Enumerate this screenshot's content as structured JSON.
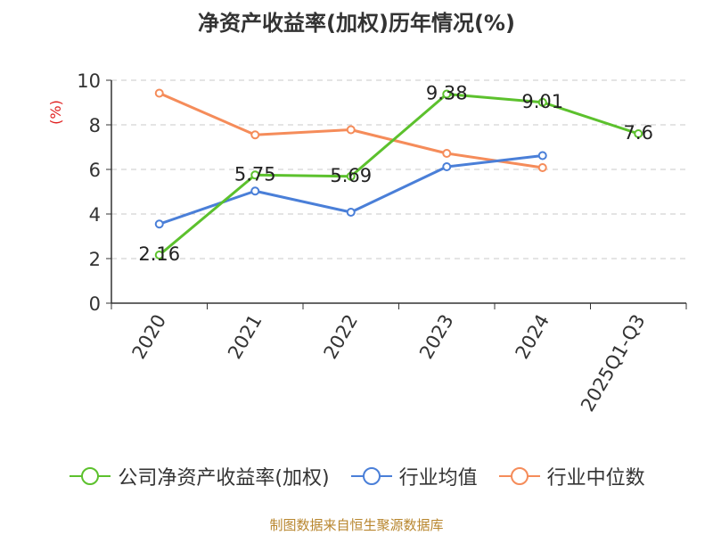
{
  "chart_data": {
    "type": "line",
    "title": "净资产收益率(加权)历年情况(%)",
    "ylabel": "(%)",
    "xlabel": "",
    "categories": [
      "2020",
      "2021",
      "2022",
      "2023",
      "2024",
      "2025Q1-Q3"
    ],
    "ylim": [
      0,
      10
    ],
    "yticks": [
      0,
      2,
      4,
      6,
      8,
      10
    ],
    "grid": true,
    "legend_position": "bottom",
    "series": [
      {
        "name": "公司净资产收益率(加权)",
        "color": "#5cc12d",
        "values": [
          2.16,
          5.75,
          5.69,
          9.38,
          9.01,
          7.6
        ],
        "data_labels": [
          "2.16",
          "5.75",
          "5.69",
          "9.38",
          "9.01",
          "7.6"
        ]
      },
      {
        "name": "行业均值",
        "color": "#4a7fd8",
        "values": [
          3.55,
          5.03,
          4.08,
          6.12,
          6.62,
          null
        ],
        "data_labels": []
      },
      {
        "name": "行业中位数",
        "color": "#f58c5a",
        "values": [
          9.42,
          7.55,
          7.78,
          6.72,
          6.08,
          null
        ],
        "data_labels": []
      }
    ]
  },
  "footer": {
    "source": "制图数据来自恒生聚源数据库"
  }
}
